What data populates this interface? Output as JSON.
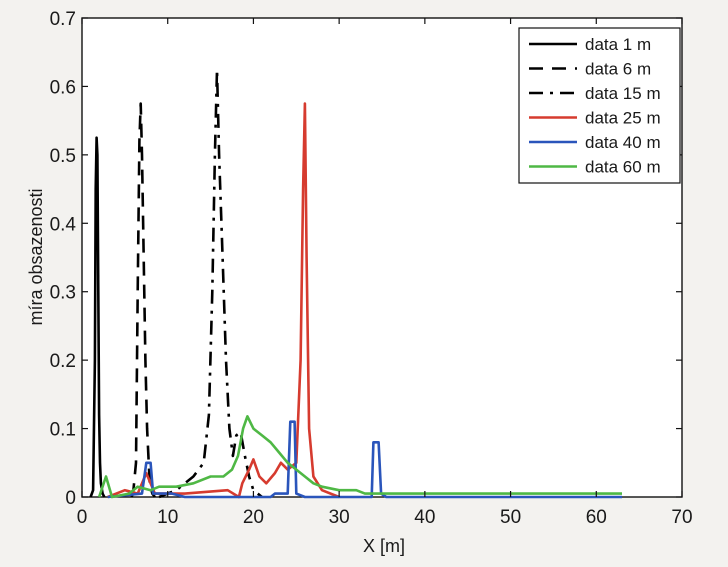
{
  "chart_data": {
    "type": "line",
    "xlabel": "X [m]",
    "ylabel": "míra obsazenosti",
    "xlim": [
      0,
      70
    ],
    "ylim": [
      0,
      0.7
    ],
    "xticks": [
      0,
      10,
      20,
      30,
      40,
      50,
      60,
      70
    ],
    "yticks": [
      0,
      0.1,
      0.2,
      0.3,
      0.4,
      0.5,
      0.6,
      0.7
    ],
    "ytick_labels": [
      "0",
      "0.1",
      "0.2",
      "0.3",
      "0.4",
      "0.5",
      "0.6",
      "0.7"
    ],
    "grid": false,
    "legend": {
      "placement": "top-right"
    },
    "series": [
      {
        "name": "data  1 m",
        "color": "#000000",
        "linestyle": "solid",
        "points": [
          [
            1.0,
            0
          ],
          [
            1.3,
            0.01
          ],
          [
            1.5,
            0.2
          ],
          [
            1.6,
            0.45
          ],
          [
            1.7,
            0.525
          ],
          [
            1.8,
            0.5
          ],
          [
            1.9,
            0.3
          ],
          [
            2.0,
            0.12
          ],
          [
            2.1,
            0.05
          ],
          [
            2.2,
            0.02
          ],
          [
            2.4,
            0.005
          ],
          [
            2.6,
            0
          ]
        ]
      },
      {
        "name": "data  6 m",
        "color": "#000000",
        "linestyle": "dashed",
        "points": [
          [
            5.8,
            0
          ],
          [
            6.0,
            0.01
          ],
          [
            6.3,
            0.05
          ],
          [
            6.5,
            0.3
          ],
          [
            6.7,
            0.52
          ],
          [
            6.85,
            0.575
          ],
          [
            7.0,
            0.5
          ],
          [
            7.2,
            0.35
          ],
          [
            7.4,
            0.2
          ],
          [
            7.6,
            0.1
          ],
          [
            7.9,
            0.02
          ],
          [
            8.2,
            0.005
          ],
          [
            8.5,
            0
          ]
        ]
      },
      {
        "name": "data 15 m",
        "color": "#000000",
        "linestyle": "dashdot",
        "points": [
          [
            9.0,
            0
          ],
          [
            11,
            0.01
          ],
          [
            13,
            0.03
          ],
          [
            14.2,
            0.05
          ],
          [
            14.8,
            0.12
          ],
          [
            15.2,
            0.3
          ],
          [
            15.5,
            0.5
          ],
          [
            15.75,
            0.625
          ],
          [
            16.0,
            0.5
          ],
          [
            16.4,
            0.35
          ],
          [
            16.8,
            0.2
          ],
          [
            17.2,
            0.1
          ],
          [
            17.6,
            0.06
          ],
          [
            18.0,
            0.09
          ],
          [
            18.5,
            0.095
          ],
          [
            19.0,
            0.06
          ],
          [
            19.5,
            0.03
          ],
          [
            20.0,
            0.01
          ],
          [
            21.0,
            0
          ]
        ]
      },
      {
        "name": "data 25 m",
        "color": "#d63b2f",
        "linestyle": "solid",
        "points": [
          [
            3.0,
            0
          ],
          [
            5.0,
            0.01
          ],
          [
            6.5,
            0.005
          ],
          [
            7.5,
            0.035
          ],
          [
            8.5,
            0.005
          ],
          [
            12,
            0.005
          ],
          [
            17,
            0.01
          ],
          [
            18.3,
            0.0
          ],
          [
            18.7,
            0.02
          ],
          [
            19.5,
            0.04
          ],
          [
            20.0,
            0.055
          ],
          [
            20.7,
            0.03
          ],
          [
            21.5,
            0.02
          ],
          [
            22.5,
            0.035
          ],
          [
            23.2,
            0.05
          ],
          [
            24.0,
            0.04
          ],
          [
            25.0,
            0.05
          ],
          [
            25.5,
            0.2
          ],
          [
            25.8,
            0.45
          ],
          [
            26.0,
            0.575
          ],
          [
            26.2,
            0.35
          ],
          [
            26.5,
            0.1
          ],
          [
            27.0,
            0.03
          ],
          [
            28.0,
            0.01
          ],
          [
            30,
            0
          ]
        ]
      },
      {
        "name": "data 40 m",
        "color": "#2a55bb",
        "linestyle": "solid",
        "points": [
          [
            3.0,
            0
          ],
          [
            7.0,
            0.005
          ],
          [
            7.5,
            0.05
          ],
          [
            8.0,
            0.05
          ],
          [
            8.3,
            0.005
          ],
          [
            10.5,
            0.005
          ],
          [
            12,
            0.0
          ],
          [
            22,
            0.0
          ],
          [
            22.5,
            0.005
          ],
          [
            24.0,
            0.005
          ],
          [
            24.3,
            0.11
          ],
          [
            24.8,
            0.11
          ],
          [
            25.0,
            0.005
          ],
          [
            26,
            0.0
          ],
          [
            33.8,
            0.0
          ],
          [
            34.0,
            0.08
          ],
          [
            34.6,
            0.08
          ],
          [
            34.9,
            0.005
          ],
          [
            35.5,
            0.0
          ],
          [
            63,
            0.0
          ]
        ]
      },
      {
        "name": "data 60 m",
        "color": "#4fb845",
        "linestyle": "solid",
        "points": [
          [
            2.0,
            0
          ],
          [
            2.8,
            0.03
          ],
          [
            3.5,
            0.0
          ],
          [
            5.5,
            0.005
          ],
          [
            6.5,
            0.015
          ],
          [
            8.0,
            0.01
          ],
          [
            9.0,
            0.015
          ],
          [
            11,
            0.015
          ],
          [
            13,
            0.02
          ],
          [
            15,
            0.03
          ],
          [
            16.5,
            0.03
          ],
          [
            17.5,
            0.04
          ],
          [
            18.2,
            0.06
          ],
          [
            18.8,
            0.1
          ],
          [
            19.3,
            0.118
          ],
          [
            20.0,
            0.1
          ],
          [
            21.0,
            0.09
          ],
          [
            22.0,
            0.08
          ],
          [
            23.0,
            0.065
          ],
          [
            24.0,
            0.05
          ],
          [
            25.0,
            0.04
          ],
          [
            26.0,
            0.03
          ],
          [
            27.0,
            0.02
          ],
          [
            28.0,
            0.015
          ],
          [
            30.0,
            0.01
          ],
          [
            32.0,
            0.01
          ],
          [
            33.0,
            0.005
          ],
          [
            35.0,
            0.005
          ],
          [
            63,
            0.005
          ]
        ]
      }
    ]
  }
}
